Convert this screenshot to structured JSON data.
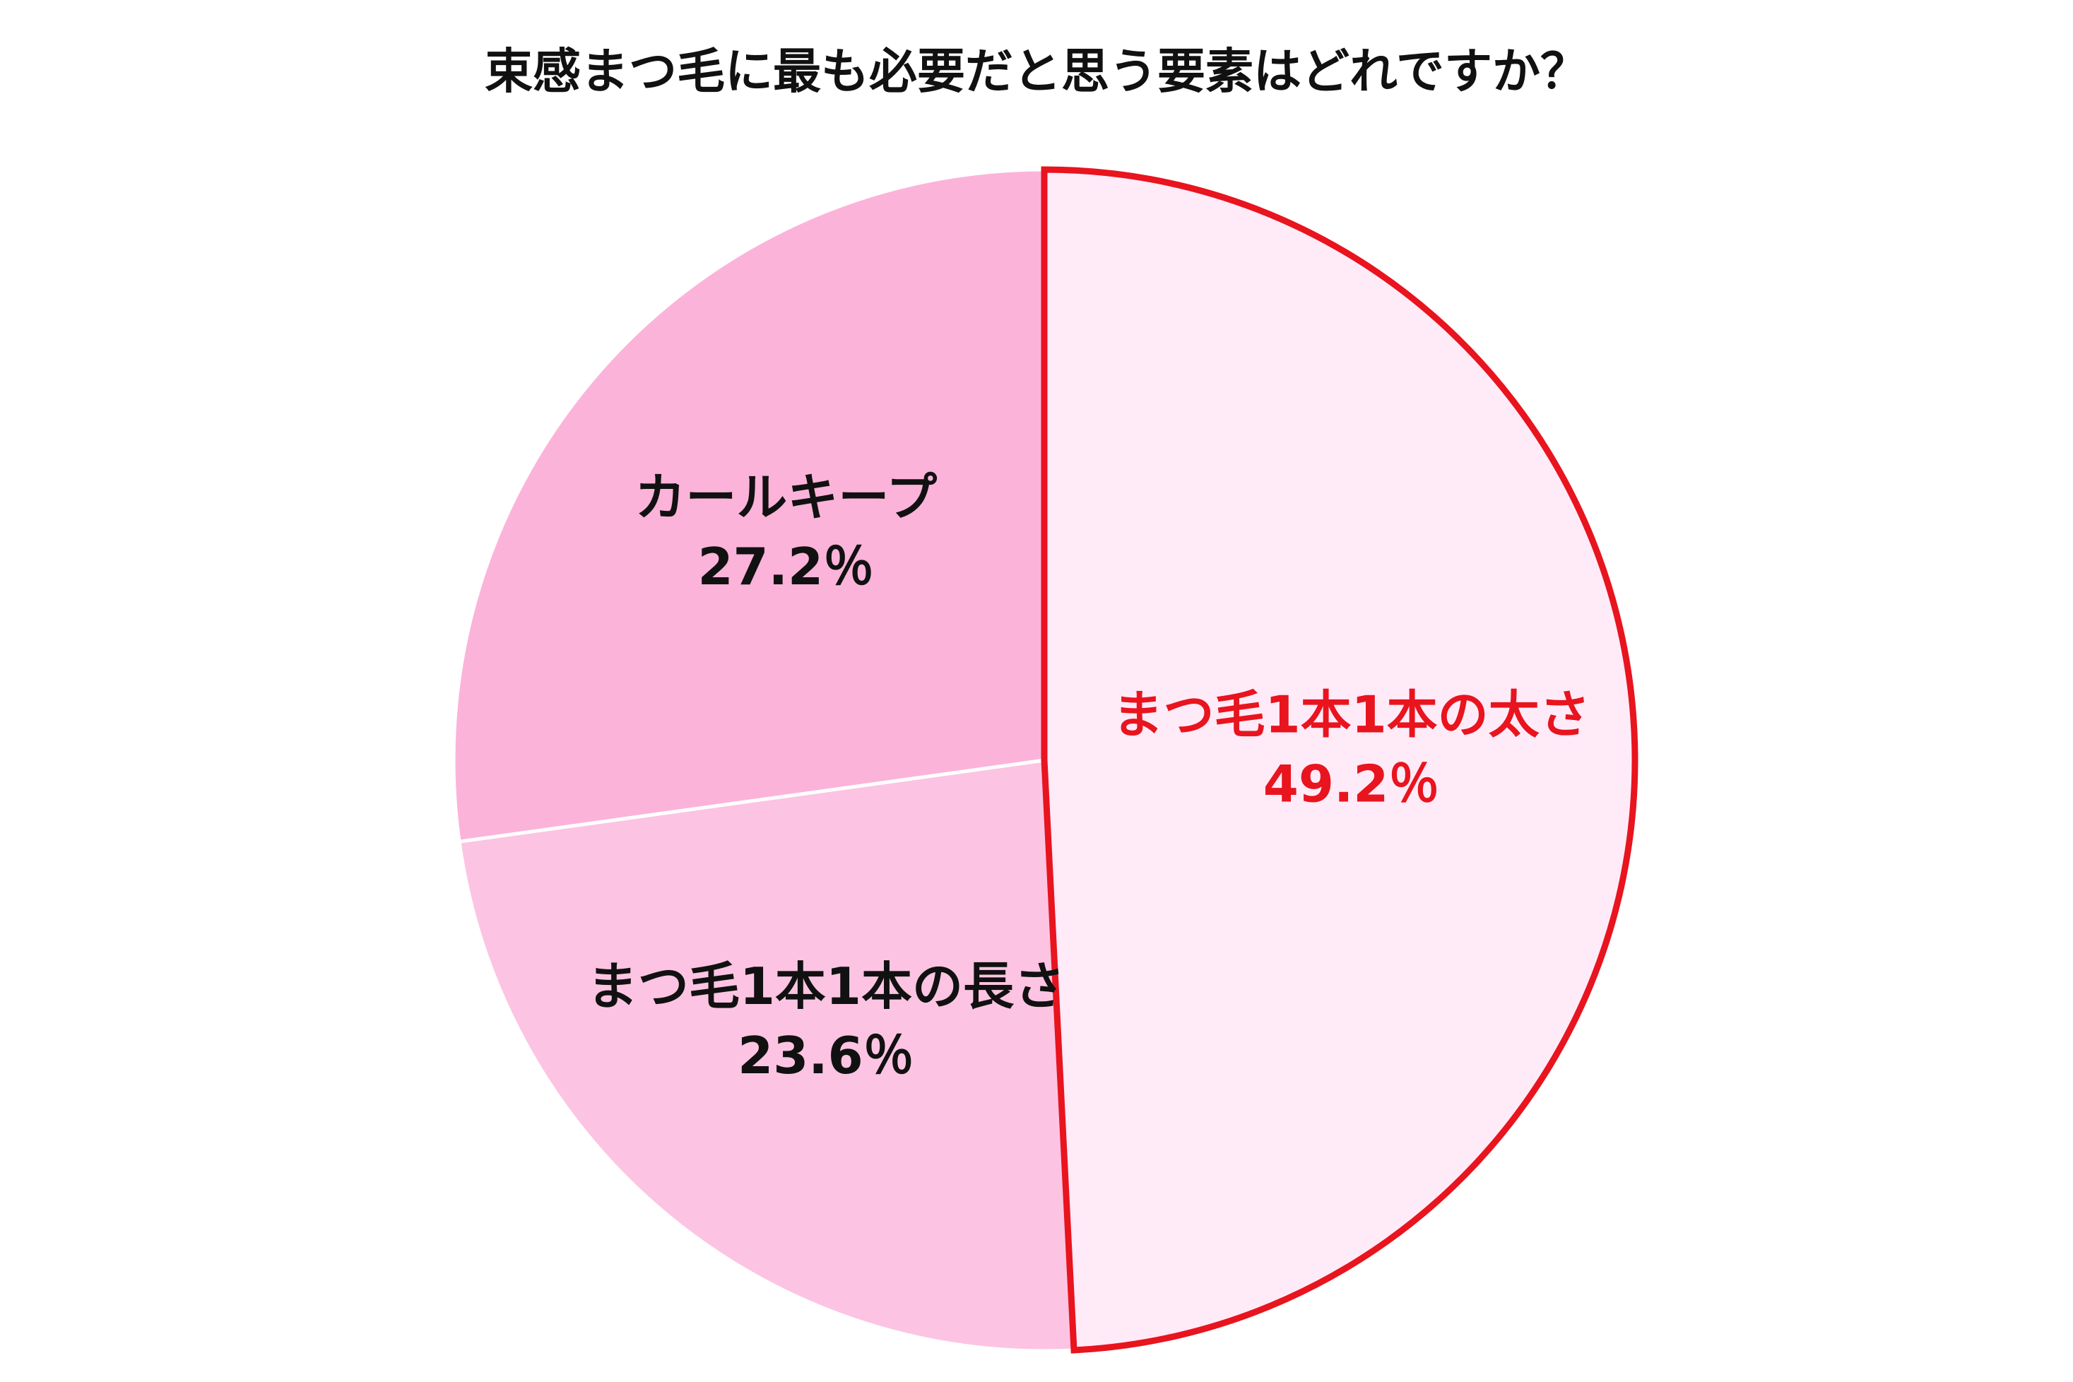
{
  "chart_data": {
    "type": "pie",
    "title": "束感まつ毛に最も必要だと思う要素はどれですか？",
    "categories": [
      "まつ毛1本1本の太さ",
      "まつ毛1本1本の長さ",
      "カールキープ"
    ],
    "values": [
      49.2,
      23.6,
      27.2
    ],
    "value_labels": [
      "49.2％",
      "23.6％",
      "27.2％"
    ],
    "colors": [
      "#ffeaf8",
      "#fcc4e2",
      "#fcb3d9"
    ],
    "label_colors": [
      "#e8141e",
      "#111111",
      "#111111"
    ],
    "highlight": 0,
    "highlight_color": "#e8141e"
  }
}
